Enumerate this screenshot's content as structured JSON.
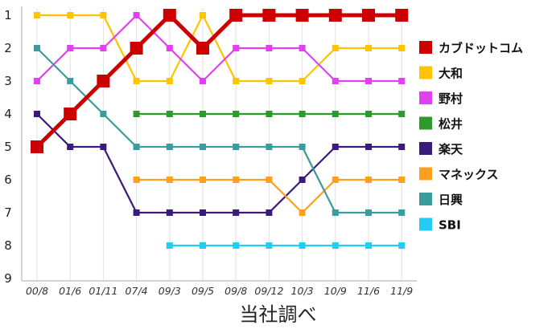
{
  "chart_data": {
    "type": "line",
    "x": [
      "00/8",
      "01/6",
      "01/11",
      "07/4",
      "09/3",
      "09/5",
      "09/8",
      "09/12",
      "10/3",
      "10/9",
      "11/6",
      "11/9"
    ],
    "y_ticks": [
      "1",
      "2",
      "3",
      "4",
      "5",
      "6",
      "7",
      "8",
      "9"
    ],
    "ylim": [
      1,
      9
    ],
    "y_inverted": true,
    "grid": "vertical",
    "legend_position": "right",
    "series": [
      {
        "name": "カブドットコム",
        "color": "#cc0000",
        "emphasis": true,
        "values": [
          5,
          4,
          3,
          2,
          1,
          2,
          1,
          1,
          1,
          1,
          1,
          1
        ]
      },
      {
        "name": "大和",
        "color": "#ffc400",
        "values": [
          1,
          1,
          1,
          3,
          3,
          1,
          3,
          3,
          3,
          2,
          2,
          2
        ]
      },
      {
        "name": "野村",
        "color": "#e040ef",
        "values": [
          3,
          2,
          2,
          1,
          2,
          3,
          2,
          2,
          2,
          3,
          3,
          3
        ]
      },
      {
        "name": "松井",
        "color": "#2e9a2e",
        "values": [
          null,
          null,
          null,
          4,
          4,
          4,
          4,
          4,
          4,
          4,
          4,
          4
        ]
      },
      {
        "name": "楽天",
        "color": "#3a1a7a",
        "values": [
          4,
          5,
          5,
          7,
          7,
          7,
          7,
          7,
          6,
          5,
          5,
          5
        ]
      },
      {
        "name": "マネックス",
        "color": "#ff9f1c",
        "values": [
          null,
          null,
          null,
          6,
          6,
          6,
          6,
          6,
          7,
          6,
          6,
          6
        ]
      },
      {
        "name": "日興",
        "color": "#3a9c9c",
        "values": [
          2,
          3,
          4,
          5,
          5,
          5,
          5,
          5,
          5,
          7,
          7,
          7
        ]
      },
      {
        "name": "SBI",
        "color": "#22ccf5",
        "values": [
          null,
          null,
          null,
          null,
          8,
          8,
          8,
          8,
          8,
          8,
          8,
          8
        ]
      }
    ]
  },
  "caption": "当社調べ"
}
